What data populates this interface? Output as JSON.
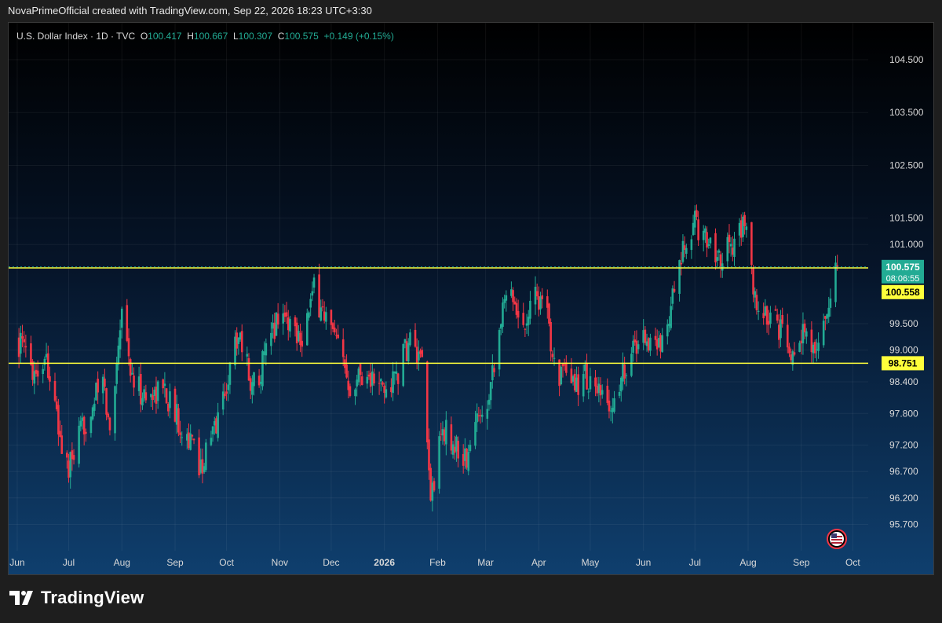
{
  "caption": "NovaPrimeOfficial created with TradingView.com, Sep 22, 2026 18:23 UTC+3:30",
  "legend": {
    "symbol": "U.S. Dollar Index · 1D · TVC",
    "o_label": "O",
    "o": "100.417",
    "h_label": "H",
    "h": "100.667",
    "l_label": "L",
    "l": "100.307",
    "c_label": "C",
    "c": "100.575",
    "change": "+0.149 (+0.15%)"
  },
  "brand": {
    "name": "TradingView",
    "logo_icon": "tradingview-logo-icon"
  },
  "colors": {
    "up": "#22ab94",
    "down": "#f23645",
    "level": "#ffff3b",
    "axis_text": "#d9d9d9"
  },
  "chart_data": {
    "type": "candlestick",
    "title": "U.S. Dollar Index · 1D · TVC",
    "grid": true,
    "ylim": [
      95.2,
      105.2
    ],
    "y_ticks": [
      {
        "value": 104.5,
        "label": "104.500"
      },
      {
        "value": 103.5,
        "label": "103.500"
      },
      {
        "value": 102.5,
        "label": "102.500"
      },
      {
        "value": 101.5,
        "label": "101.500"
      },
      {
        "value": 101.0,
        "label": "101.000"
      },
      {
        "value": 99.5,
        "label": "99.500"
      },
      {
        "value": 99.0,
        "label": "99.000"
      },
      {
        "value": 98.4,
        "label": "98.400"
      },
      {
        "value": 97.8,
        "label": "97.800"
      },
      {
        "value": 97.2,
        "label": "97.200"
      },
      {
        "value": 96.7,
        "label": "96.700"
      },
      {
        "value": 96.2,
        "label": "96.200"
      },
      {
        "value": 95.7,
        "label": "95.700"
      }
    ],
    "x_ticks": [
      {
        "date": "2025-06-01",
        "label": "Jun",
        "bold": false
      },
      {
        "date": "2025-07-01",
        "label": "Jul",
        "bold": false
      },
      {
        "date": "2025-08-01",
        "label": "Aug",
        "bold": false
      },
      {
        "date": "2025-09-01",
        "label": "Sep",
        "bold": false
      },
      {
        "date": "2025-10-01",
        "label": "Oct",
        "bold": false
      },
      {
        "date": "2025-11-01",
        "label": "Nov",
        "bold": false
      },
      {
        "date": "2025-12-01",
        "label": "Dec",
        "bold": false
      },
      {
        "date": "2026-01-01",
        "label": "2026",
        "bold": true
      },
      {
        "date": "2026-02-01",
        "label": "Feb",
        "bold": false
      },
      {
        "date": "2026-03-01",
        "label": "Mar",
        "bold": false
      },
      {
        "date": "2026-04-01",
        "label": "Apr",
        "bold": false
      },
      {
        "date": "2026-05-01",
        "label": "May",
        "bold": false
      },
      {
        "date": "2026-06-01",
        "label": "Jun",
        "bold": false
      },
      {
        "date": "2026-07-01",
        "label": "Jul",
        "bold": false
      },
      {
        "date": "2026-08-01",
        "label": "Aug",
        "bold": false
      },
      {
        "date": "2026-09-01",
        "label": "Sep",
        "bold": false
      },
      {
        "date": "2026-10-01",
        "label": "Oct",
        "bold": false
      }
    ],
    "horizontal_levels": [
      {
        "value": 100.558,
        "label": "100.558"
      },
      {
        "value": 98.751,
        "label": "98.751"
      }
    ],
    "last_price": {
      "value": 100.575,
      "label": "100.575",
      "countdown": "08:06:55"
    },
    "series": [
      {
        "close_path": [
          {
            "date": "2025-06-01",
            "close": 99.2
          },
          {
            "date": "2025-06-12",
            "close": 98.6
          },
          {
            "date": "2025-06-18",
            "close": 98.9
          },
          {
            "date": "2025-06-26",
            "close": 97.3
          },
          {
            "date": "2025-07-01",
            "close": 96.7
          },
          {
            "date": "2025-07-07",
            "close": 97.3
          },
          {
            "date": "2025-07-15",
            "close": 98.0
          },
          {
            "date": "2025-07-21",
            "close": 98.4
          },
          {
            "date": "2025-07-25",
            "close": 97.4
          },
          {
            "date": "2025-08-01",
            "close": 99.9
          },
          {
            "date": "2025-08-07",
            "close": 98.4
          },
          {
            "date": "2025-08-15",
            "close": 98.1
          },
          {
            "date": "2025-08-25",
            "close": 98.3
          },
          {
            "date": "2025-09-01",
            "close": 97.8
          },
          {
            "date": "2025-09-08",
            "close": 97.4
          },
          {
            "date": "2025-09-16",
            "close": 96.8
          },
          {
            "date": "2025-09-22",
            "close": 97.3
          },
          {
            "date": "2025-09-30",
            "close": 98.2
          },
          {
            "date": "2025-10-08",
            "close": 99.4
          },
          {
            "date": "2025-10-16",
            "close": 98.3
          },
          {
            "date": "2025-10-24",
            "close": 98.9
          },
          {
            "date": "2025-11-01",
            "close": 99.8
          },
          {
            "date": "2025-11-07",
            "close": 99.5
          },
          {
            "date": "2025-11-14",
            "close": 99.3
          },
          {
            "date": "2025-11-21",
            "close": 100.1
          },
          {
            "date": "2025-11-28",
            "close": 99.6
          },
          {
            "date": "2025-12-05",
            "close": 99.0
          },
          {
            "date": "2025-12-12",
            "close": 98.4
          },
          {
            "date": "2025-12-19",
            "close": 98.6
          },
          {
            "date": "2026-01-02",
            "close": 98.2
          },
          {
            "date": "2026-01-09",
            "close": 98.6
          },
          {
            "date": "2026-01-16",
            "close": 99.2
          },
          {
            "date": "2026-01-23",
            "close": 98.6
          },
          {
            "date": "2026-01-28",
            "close": 96.2
          },
          {
            "date": "2026-02-04",
            "close": 97.5
          },
          {
            "date": "2026-02-11",
            "close": 97.2
          },
          {
            "date": "2026-02-18",
            "close": 96.9
          },
          {
            "date": "2026-02-25",
            "close": 97.8
          },
          {
            "date": "2026-03-02",
            "close": 98.1
          },
          {
            "date": "2026-03-10",
            "close": 99.6
          },
          {
            "date": "2026-03-16",
            "close": 100.3
          },
          {
            "date": "2026-03-22",
            "close": 99.3
          },
          {
            "date": "2026-03-29",
            "close": 100.2
          },
          {
            "date": "2026-04-05",
            "close": 99.7
          },
          {
            "date": "2026-04-12",
            "close": 98.6
          },
          {
            "date": "2026-04-20",
            "close": 98.3
          },
          {
            "date": "2026-04-28",
            "close": 98.5
          },
          {
            "date": "2026-05-06",
            "close": 98.1
          },
          {
            "date": "2026-05-14",
            "close": 97.9
          },
          {
            "date": "2026-05-22",
            "close": 98.8
          },
          {
            "date": "2026-06-01",
            "close": 99.3
          },
          {
            "date": "2026-06-09",
            "close": 99.0
          },
          {
            "date": "2026-06-17",
            "close": 99.8
          },
          {
            "date": "2026-06-24",
            "close": 100.8
          },
          {
            "date": "2026-07-01",
            "close": 101.4
          },
          {
            "date": "2026-07-08",
            "close": 101.1
          },
          {
            "date": "2026-07-15",
            "close": 100.8
          },
          {
            "date": "2026-07-22",
            "close": 101.0
          },
          {
            "date": "2026-07-30",
            "close": 101.4
          },
          {
            "date": "2026-08-05",
            "close": 99.9
          },
          {
            "date": "2026-08-12",
            "close": 99.6
          },
          {
            "date": "2026-08-18",
            "close": 99.5
          },
          {
            "date": "2026-08-25",
            "close": 98.9
          },
          {
            "date": "2026-09-01",
            "close": 99.4
          },
          {
            "date": "2026-09-08",
            "close": 98.9
          },
          {
            "date": "2026-09-14",
            "close": 99.5
          },
          {
            "date": "2026-09-22",
            "close": 100.575
          }
        ]
      }
    ]
  }
}
